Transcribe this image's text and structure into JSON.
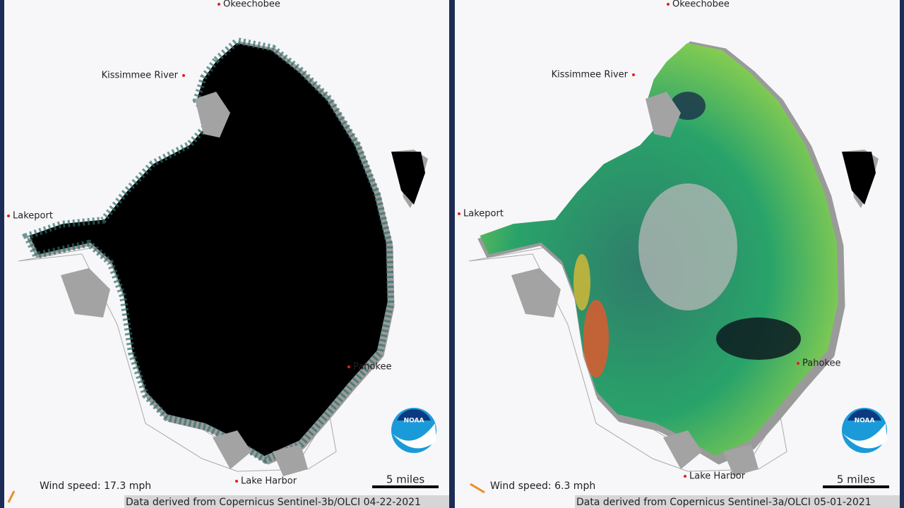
{
  "panels": [
    {
      "places": [
        "Okeechobee",
        "Kissimmee River",
        "Lakeport",
        "Pahokee",
        "Lake Harbor"
      ],
      "wind_speed": "Wind speed: 17.3 mph",
      "scale_bar": "5 miles",
      "credit": "Data derived from Copernicus Sentinel-3b/OLCI 04-22-2021",
      "logo": "NOAA"
    },
    {
      "places": [
        "Okeechobee",
        "Kissimmee River",
        "Lakeport",
        "Pahokee",
        "Lake Harbor"
      ],
      "wind_speed": "Wind speed: 6.3 mph",
      "scale_bar": "5 miles",
      "credit": "Data derived from Copernicus Sentinel-3a/OLCI 05-01-2021",
      "logo": "NOAA"
    }
  ]
}
